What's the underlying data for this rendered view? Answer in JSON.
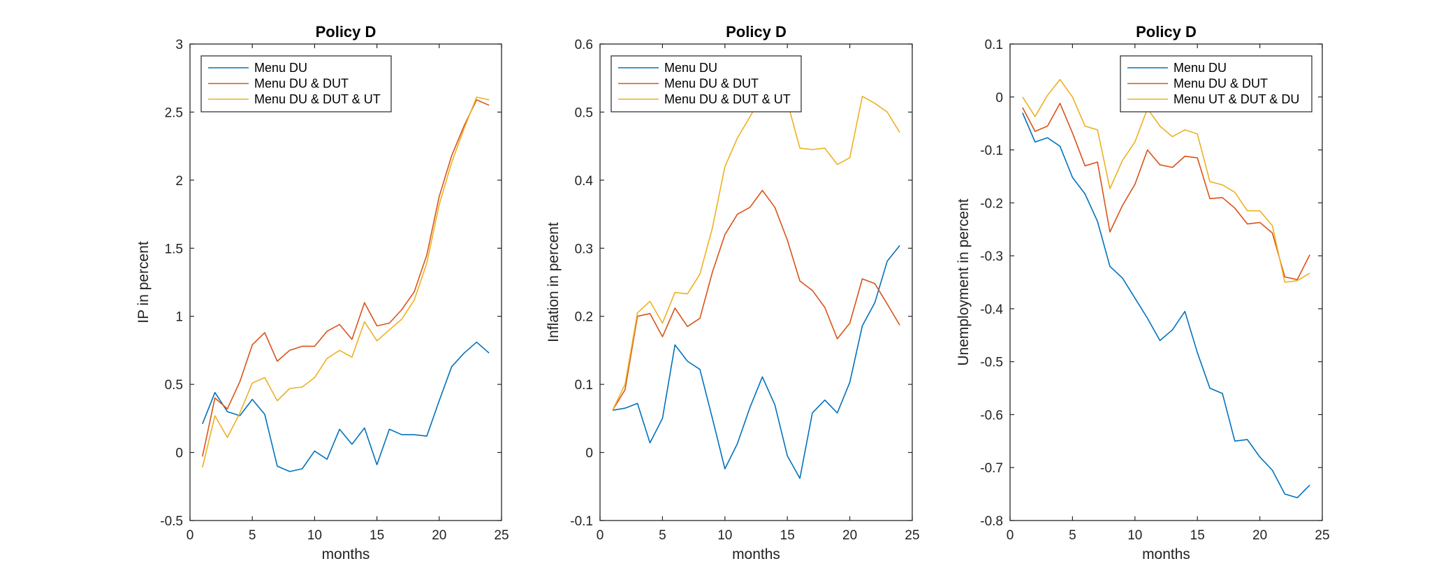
{
  "colors": {
    "series_1": "#0072BD",
    "series_2": "#D95319",
    "series_3": "#EDB120",
    "axis": "#262626"
  },
  "chart_data": [
    {
      "type": "line",
      "title": "Policy D",
      "xlabel": "months",
      "ylabel": "IP in percent",
      "xlim": [
        0,
        25
      ],
      "ylim": [
        -0.5,
        3
      ],
      "xticks": [
        0,
        5,
        10,
        15,
        20,
        25
      ],
      "yticks": [
        -0.5,
        0,
        0.5,
        1,
        1.5,
        2,
        2.5,
        3
      ],
      "yticklabels": [
        "-0.5",
        "0",
        "0.5",
        "1",
        "1.5",
        "2",
        "2.5",
        "3"
      ],
      "legend_position": "top-left",
      "grid": false,
      "x": [
        1,
        2,
        3,
        4,
        5,
        6,
        7,
        8,
        9,
        10,
        11,
        12,
        13,
        14,
        15,
        16,
        17,
        18,
        19,
        20,
        21,
        22,
        23,
        24
      ],
      "series": [
        {
          "name": "Menu DU",
          "values": [
            0.21,
            0.44,
            0.3,
            0.27,
            0.39,
            0.28,
            -0.1,
            -0.14,
            -0.12,
            0.01,
            -0.05,
            0.17,
            0.06,
            0.18,
            -0.09,
            0.17,
            0.13,
            0.13,
            0.12,
            0.38,
            0.63,
            0.73,
            0.81,
            0.73
          ]
        },
        {
          "name": "Menu DU & DUT",
          "values": [
            -0.03,
            0.4,
            0.32,
            0.52,
            0.79,
            0.88,
            0.67,
            0.75,
            0.78,
            0.78,
            0.89,
            0.94,
            0.83,
            1.1,
            0.93,
            0.95,
            1.05,
            1.18,
            1.45,
            1.88,
            2.18,
            2.4,
            2.59,
            2.55
          ]
        },
        {
          "name": "Menu DU & DUT & UT",
          "values": [
            -0.11,
            0.27,
            0.11,
            0.29,
            0.51,
            0.55,
            0.38,
            0.47,
            0.48,
            0.55,
            0.69,
            0.75,
            0.7,
            0.96,
            0.82,
            0.9,
            0.98,
            1.12,
            1.39,
            1.82,
            2.13,
            2.38,
            2.61,
            2.59
          ]
        }
      ]
    },
    {
      "type": "line",
      "title": "Policy D",
      "xlabel": "months",
      "ylabel": "Inflation in percent",
      "xlim": [
        0,
        25
      ],
      "ylim": [
        -0.1,
        0.6
      ],
      "xticks": [
        0,
        5,
        10,
        15,
        20,
        25
      ],
      "yticks": [
        -0.1,
        0,
        0.1,
        0.2,
        0.3,
        0.4,
        0.5,
        0.6
      ],
      "yticklabels": [
        "-0.1",
        "0",
        "0.1",
        "0.2",
        "0.3",
        "0.4",
        "0.5",
        "0.6"
      ],
      "legend_position": "top-left",
      "grid": false,
      "x": [
        1,
        2,
        3,
        4,
        5,
        6,
        7,
        8,
        9,
        10,
        11,
        12,
        13,
        14,
        15,
        16,
        17,
        18,
        19,
        20,
        21,
        22,
        23,
        24
      ],
      "series": [
        {
          "name": "Menu DU",
          "values": [
            0.062,
            0.065,
            0.072,
            0.014,
            0.05,
            0.158,
            0.134,
            0.122,
            0.05,
            -0.024,
            0.013,
            0.066,
            0.111,
            0.07,
            -0.005,
            -0.038,
            0.058,
            0.077,
            0.058,
            0.103,
            0.186,
            0.22,
            0.281,
            0.304
          ]
        },
        {
          "name": "Menu DU & DUT",
          "values": [
            0.062,
            0.092,
            0.2,
            0.204,
            0.17,
            0.212,
            0.185,
            0.197,
            0.265,
            0.32,
            0.35,
            0.36,
            0.385,
            0.36,
            0.312,
            0.252,
            0.238,
            0.213,
            0.167,
            0.19,
            0.255,
            0.248,
            0.218,
            0.187
          ]
        },
        {
          "name": "Menu DU & DUT & UT",
          "values": [
            0.062,
            0.1,
            0.205,
            0.222,
            0.19,
            0.235,
            0.233,
            0.262,
            0.33,
            0.42,
            0.462,
            0.493,
            0.525,
            0.53,
            0.515,
            0.447,
            0.445,
            0.447,
            0.423,
            0.433,
            0.523,
            0.513,
            0.5,
            0.47
          ]
        }
      ]
    },
    {
      "type": "line",
      "title": "Policy D",
      "xlabel": "months",
      "ylabel": "Unemployment in percent",
      "xlim": [
        0,
        25
      ],
      "ylim": [
        -0.8,
        0.1
      ],
      "xticks": [
        0,
        5,
        10,
        15,
        20,
        25
      ],
      "yticks": [
        -0.8,
        -0.7,
        -0.6,
        -0.5,
        -0.4,
        -0.3,
        -0.2,
        -0.1,
        0,
        0.1
      ],
      "yticklabels": [
        "-0.8",
        "-0.7",
        "-0.6",
        "-0.5",
        "-0.4",
        "-0.3",
        "-0.2",
        "-0.1",
        "0",
        "0.1"
      ],
      "legend_position": "top-right",
      "grid": false,
      "x": [
        1,
        2,
        3,
        4,
        5,
        6,
        7,
        8,
        9,
        10,
        11,
        12,
        13,
        14,
        15,
        16,
        17,
        18,
        19,
        20,
        21,
        22,
        23,
        24
      ],
      "series": [
        {
          "name": "Menu DU",
          "values": [
            -0.03,
            -0.085,
            -0.077,
            -0.093,
            -0.152,
            -0.183,
            -0.235,
            -0.32,
            -0.342,
            -0.38,
            -0.418,
            -0.46,
            -0.44,
            -0.405,
            -0.483,
            -0.55,
            -0.56,
            -0.65,
            -0.647,
            -0.68,
            -0.705,
            -0.75,
            -0.757,
            -0.733
          ]
        },
        {
          "name": "Menu DU & DUT",
          "values": [
            -0.02,
            -0.065,
            -0.055,
            -0.012,
            -0.068,
            -0.13,
            -0.123,
            -0.255,
            -0.205,
            -0.165,
            -0.1,
            -0.128,
            -0.133,
            -0.112,
            -0.115,
            -0.192,
            -0.19,
            -0.21,
            -0.24,
            -0.237,
            -0.257,
            -0.34,
            -0.345,
            -0.298
          ]
        },
        {
          "name": "Menu UT & DUT & DU",
          "values": [
            0.0,
            -0.037,
            0.003,
            0.033,
            0.0,
            -0.055,
            -0.062,
            -0.173,
            -0.12,
            -0.085,
            -0.022,
            -0.055,
            -0.075,
            -0.062,
            -0.07,
            -0.16,
            -0.166,
            -0.18,
            -0.215,
            -0.215,
            -0.243,
            -0.35,
            -0.347,
            -0.333
          ]
        }
      ]
    }
  ]
}
